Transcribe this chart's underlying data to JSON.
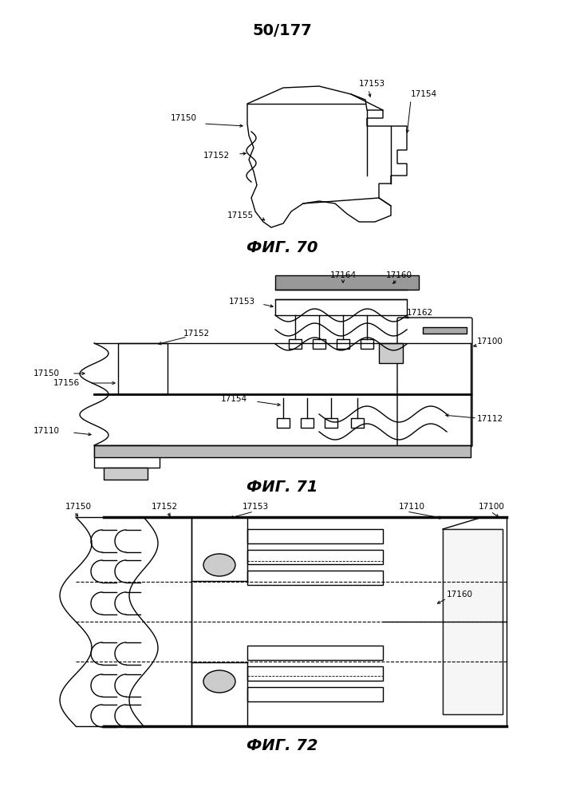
{
  "title": "50/177",
  "title_fontsize": 14,
  "title_fontweight": "bold",
  "fig_labels": [
    "ФИГ. 70",
    "ФИГ. 71",
    "ФИГ. 72"
  ],
  "fig_label_fontsize": 14,
  "fig_label_fontweight": "bold",
  "background_color": "#ffffff",
  "line_color": "#000000",
  "annotation_fontsize": 7.5,
  "gray_color": "#aaaaaa",
  "dark_gray": "#555555"
}
